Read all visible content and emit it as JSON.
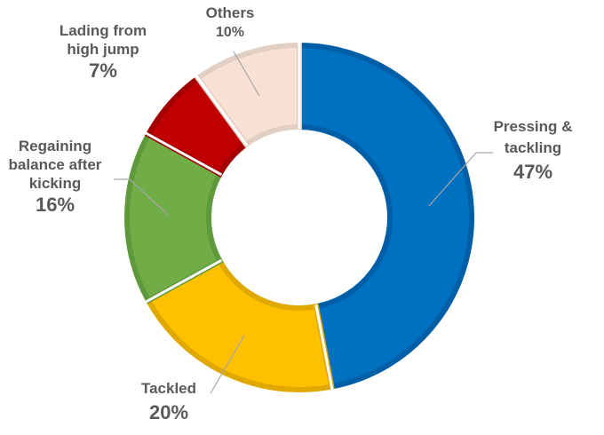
{
  "chart_data": {
    "type": "pie",
    "variant": "donut",
    "title": "",
    "legend": "none",
    "slices": [
      {
        "name": "Pressing & tackling",
        "label_lines": [
          "Pressing &",
          "tackling"
        ],
        "value": 47,
        "percent_label": "47%",
        "color": "#0070C0",
        "stroke": "#005EA6"
      },
      {
        "name": "Tackled",
        "label_lines": [
          "Tackled"
        ],
        "value": 20,
        "percent_label": "20%",
        "color": "#FFC000",
        "stroke": "#E0A800"
      },
      {
        "name": "Regaining balance after kicking",
        "label_lines": [
          "Regaining",
          "balance after",
          "kicking"
        ],
        "value": 16,
        "percent_label": "16%",
        "color": "#70AD47",
        "stroke": "#5E9A3B"
      },
      {
        "name": "Lading from high jump",
        "label_lines": [
          "Lading from",
          "high jump"
        ],
        "value": 7,
        "percent_label": "7%",
        "color": "#C00000",
        "stroke": "#A30000"
      },
      {
        "name": "Others",
        "label_lines": [
          "Others"
        ],
        "value": 10,
        "percent_label": "10%",
        "color": "#F8E0D4",
        "stroke": "#E2CFC3"
      }
    ]
  }
}
